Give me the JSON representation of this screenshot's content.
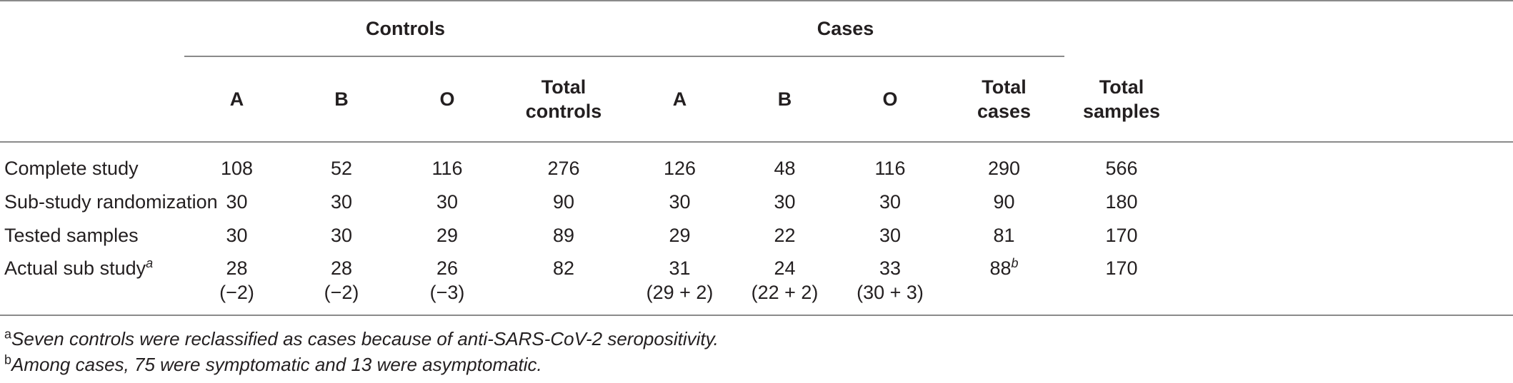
{
  "table": {
    "group_headers": {
      "controls": "Controls",
      "cases": "Cases"
    },
    "column_headers": {
      "controls_a": "A",
      "controls_b": "B",
      "controls_o": "O",
      "total_controls_line1": "Total",
      "total_controls_line2": "controls",
      "cases_a": "A",
      "cases_b": "B",
      "cases_o": "O",
      "total_cases_line1": "Total",
      "total_cases_line2": "cases",
      "total_samples_line1": "Total",
      "total_samples_line2": "samples"
    },
    "rows": [
      {
        "label": "Complete study",
        "values": [
          "108",
          "52",
          "116",
          "276",
          "126",
          "48",
          "116",
          "290",
          "566"
        ]
      },
      {
        "label": "Sub-study randomization",
        "values": [
          "30",
          "30",
          "30",
          "90",
          "30",
          "30",
          "30",
          "90",
          "180"
        ]
      },
      {
        "label": "Tested samples",
        "values": [
          "30",
          "30",
          "29",
          "89",
          "29",
          "22",
          "30",
          "81",
          "170"
        ]
      },
      {
        "label": "Actual sub study",
        "label_sup": "a",
        "values": [
          "28",
          "28",
          "26",
          "82",
          "31",
          "24",
          "33",
          "88",
          "170"
        ],
        "total_cases_sup": "b",
        "subvalues": [
          "(−2)",
          "(−2)",
          "(−3)",
          "",
          "(29 + 2)",
          "(22 + 2)",
          "(30 +  3)",
          "",
          ""
        ]
      }
    ]
  },
  "footnotes": [
    {
      "mark": "a",
      "text": "Seven controls were reclassified as cases because of anti-SARS-CoV-2 seropositivity."
    },
    {
      "mark": "b",
      "text": "Among cases, 75 were symptomatic and 13 were asymptomatic."
    }
  ]
}
